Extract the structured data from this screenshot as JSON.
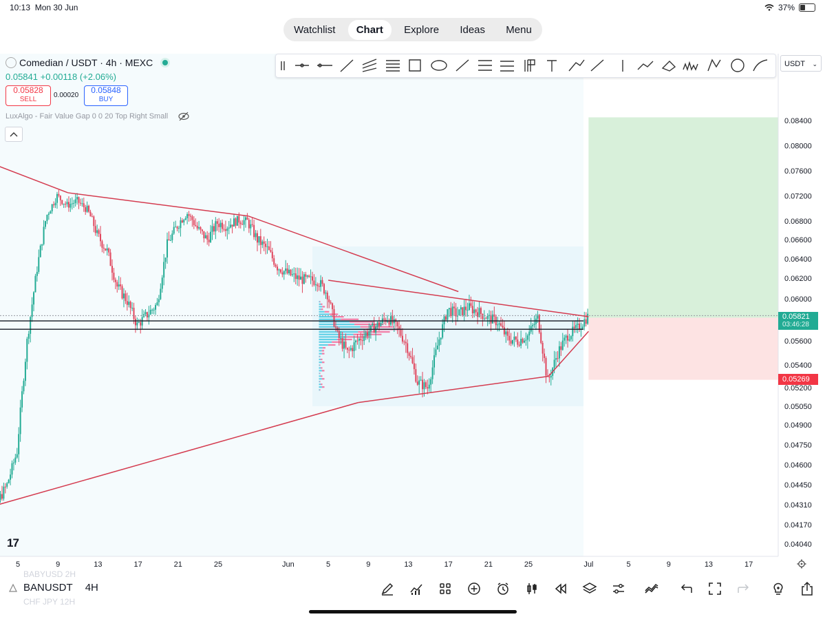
{
  "status_bar": {
    "time": "10:13",
    "date": "Mon 30 Jun",
    "battery": "37%"
  },
  "top_nav": {
    "tabs": [
      "Watchlist",
      "Chart",
      "Explore",
      "Ideas",
      "Menu"
    ],
    "active": "Chart"
  },
  "symbol": {
    "name": "Comedian / USDT · 4h · MEXC",
    "last": "0.05841",
    "change": "+0.00118 (+2.06%)",
    "sell_price": "0.05828",
    "sell_label": "SELL",
    "buy_price": "0.05848",
    "buy_label": "BUY",
    "spread": "0.00020"
  },
  "indicator": "LuxAlgo - Fair Value Gap 0 0 20 Top Right Small",
  "currency_select": "USDT",
  "price_tags": {
    "current": "0.05821",
    "countdown": "03:46:28",
    "stop": "0.05269"
  },
  "tv_logo": "17",
  "bottom_bar": {
    "symbol": "BANUSDT",
    "interval": "4H",
    "ghost_prev": "BABYUSD   2H",
    "ghost_next": "CHF JPY   12H"
  },
  "colors": {
    "up": "#22ab94",
    "down": "#e0455c",
    "trend": "#d43b4f",
    "target": "#d8f0da",
    "stop": "#fde3e3",
    "pattern": "#e9f6fb"
  },
  "chart_data": {
    "type": "candlestick",
    "symbol": "Comedian / USDT",
    "interval": "4h",
    "y_ticks": [
      0.084,
      0.08,
      0.076,
      0.072,
      0.068,
      0.066,
      0.064,
      0.062,
      0.06,
      0.056,
      0.054,
      0.052,
      0.0505,
      0.049,
      0.0475,
      0.046,
      0.0445,
      0.0431,
      0.0417,
      0.0404
    ],
    "y_tick_labels": [
      "0.08400",
      "0.08000",
      "0.07600",
      "0.07200",
      "0.06800",
      "0.06600",
      "0.06400",
      "0.06200",
      "0.06000",
      "0.05600",
      "0.05400",
      "0.05200",
      "0.05050",
      "0.04900",
      "0.04750",
      "0.04600",
      "0.04450",
      "0.04310",
      "0.04170",
      "0.04040"
    ],
    "x_ticks": [
      "5",
      "9",
      "13",
      "17",
      "21",
      "25",
      "Jun",
      "5",
      "9",
      "13",
      "17",
      "21",
      "25",
      "Jul",
      "5",
      "9",
      "13",
      "17"
    ],
    "x_dates": [
      "2025-05-05",
      "2025-05-09",
      "2025-05-13",
      "2025-05-17",
      "2025-05-21",
      "2025-05-25",
      "2025-06-01",
      "2025-06-05",
      "2025-06-09",
      "2025-06-13",
      "2025-06-17",
      "2025-06-21",
      "2025-06-25",
      "2025-07-01",
      "2025-07-05",
      "2025-07-09",
      "2025-07-13",
      "2025-07-17"
    ],
    "path_points": [
      [
        "2025-05-01",
        0.0425
      ],
      [
        "2025-05-02",
        0.0418
      ],
      [
        "2025-05-03",
        0.0432
      ],
      [
        "2025-05-04",
        0.0445
      ],
      [
        "2025-05-05",
        0.047
      ],
      [
        "2025-05-06",
        0.056
      ],
      [
        "2025-05-07",
        0.063
      ],
      [
        "2025-05-08",
        0.069
      ],
      [
        "2025-05-09",
        0.072
      ],
      [
        "2025-05-10",
        0.0705
      ],
      [
        "2025-05-11",
        0.0712
      ],
      [
        "2025-05-12",
        0.0698
      ],
      [
        "2025-05-13",
        0.0665
      ],
      [
        "2025-05-14",
        0.0648
      ],
      [
        "2025-05-15",
        0.0612
      ],
      [
        "2025-05-16",
        0.0598
      ],
      [
        "2025-05-17",
        0.0575
      ],
      [
        "2025-05-18",
        0.0585
      ],
      [
        "2025-05-19",
        0.0595
      ],
      [
        "2025-05-20",
        0.0655
      ],
      [
        "2025-05-21",
        0.0675
      ],
      [
        "2025-05-22",
        0.0692
      ],
      [
        "2025-05-23",
        0.0672
      ],
      [
        "2025-05-24",
        0.066
      ],
      [
        "2025-05-25",
        0.0678
      ],
      [
        "2025-05-26",
        0.0675
      ],
      [
        "2025-05-27",
        0.0682
      ],
      [
        "2025-05-28",
        0.068
      ],
      [
        "2025-05-29",
        0.066
      ],
      [
        "2025-05-30",
        0.065
      ],
      [
        "2025-05-31",
        0.0632
      ],
      [
        "2025-06-01",
        0.0625
      ],
      [
        "2025-06-02",
        0.062
      ],
      [
        "2025-06-03",
        0.0618
      ],
      [
        "2025-06-04",
        0.0618
      ],
      [
        "2025-06-05",
        0.0605
      ],
      [
        "2025-06-06",
        0.0565
      ],
      [
        "2025-06-07",
        0.055
      ],
      [
        "2025-06-08",
        0.056
      ],
      [
        "2025-06-09",
        0.0568
      ],
      [
        "2025-06-10",
        0.0575
      ],
      [
        "2025-06-11",
        0.0582
      ],
      [
        "2025-06-12",
        0.0572
      ],
      [
        "2025-06-13",
        0.0555
      ],
      [
        "2025-06-14",
        0.0525
      ],
      [
        "2025-06-15",
        0.052
      ],
      [
        "2025-06-16",
        0.0556
      ],
      [
        "2025-06-17",
        0.059
      ],
      [
        "2025-06-18",
        0.0585
      ],
      [
        "2025-06-19",
        0.0592
      ],
      [
        "2025-06-20",
        0.0588
      ],
      [
        "2025-06-21",
        0.0582
      ],
      [
        "2025-06-22",
        0.0578
      ],
      [
        "2025-06-23",
        0.0562
      ],
      [
        "2025-06-24",
        0.056
      ],
      [
        "2025-06-25",
        0.0565
      ],
      [
        "2025-06-26",
        0.0582
      ],
      [
        "2025-06-27",
        0.0525
      ],
      [
        "2025-06-28",
        0.055
      ],
      [
        "2025-06-29",
        0.0565
      ],
      [
        "2025-06-30",
        0.0572
      ],
      [
        "2025-07-01",
        0.0583
      ]
    ],
    "trendlines": [
      {
        "from": [
          "2025-05-01",
          0.078
        ],
        "to": [
          "2025-05-10",
          0.0725
        ]
      },
      {
        "from": [
          "2025-05-10",
          0.0725
        ],
        "to": [
          "2025-05-28",
          0.0688
        ]
      },
      {
        "from": [
          "2025-05-28",
          0.0688
        ],
        "to": [
          "2025-06-18",
          0.0607
        ]
      },
      {
        "from": [
          "2025-06-05",
          0.0618
        ],
        "to": [
          "2025-07-01",
          0.0583
        ]
      },
      {
        "from": [
          "2025-05-01",
          0.0427
        ],
        "to": [
          "2025-06-08",
          0.0508
        ]
      },
      {
        "from": [
          "2025-06-08",
          0.0508
        ],
        "to": [
          "2025-06-27",
          0.053
        ]
      },
      {
        "from": [
          "2025-06-27",
          0.053
        ],
        "to": [
          "2025-07-01",
          0.0569
        ]
      }
    ],
    "horizontal_levels": [
      0.0584,
      0.0579,
      0.0571
    ],
    "position": {
      "entry": 0.0582,
      "target": 0.0845,
      "stop": 0.05269,
      "start": "2025-07-01"
    },
    "grid": false
  }
}
